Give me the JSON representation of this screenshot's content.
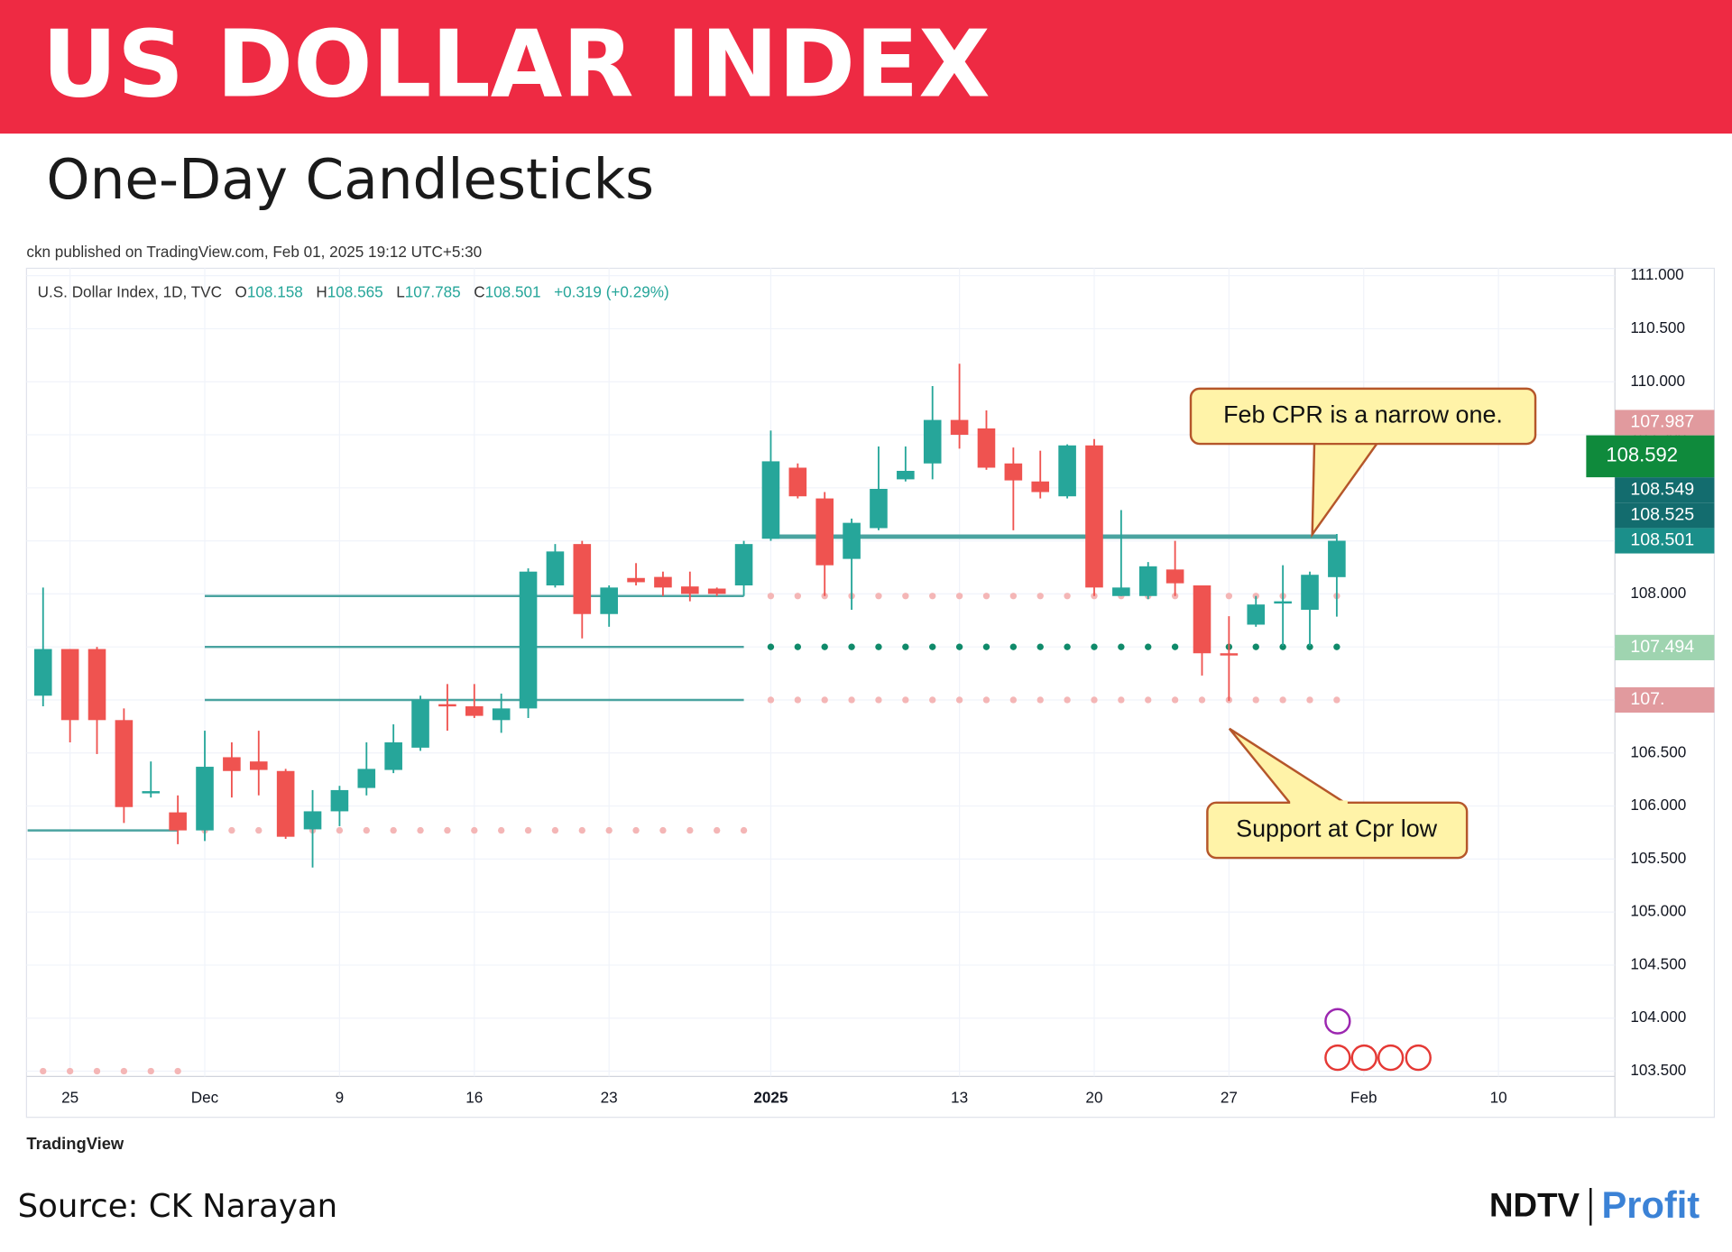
{
  "header": {
    "title": "US DOLLAR INDEX",
    "subtitle": "One-Day Candlesticks",
    "published": "ckn published on TradingView.com, Feb 01, 2025 19:12 UTC+5:30"
  },
  "legend": {
    "symbol": "U.S. Dollar Index, 1D, TVC",
    "o": "O",
    "h": "H",
    "l": "L",
    "c": "C",
    "change": "+0.319 (+0.29%)"
  },
  "chart_data": {
    "type": "candlestick",
    "up_color": "#26a69a",
    "down_color": "#ef5350",
    "categories": [
      null,
      "25",
      null,
      null,
      null,
      null,
      "Dec",
      null,
      null,
      null,
      null,
      "9",
      null,
      null,
      null,
      null,
      "16",
      null,
      null,
      null,
      null,
      "23",
      null,
      null,
      null,
      null,
      null,
      "2025",
      null,
      null,
      null,
      null,
      null,
      null,
      "13",
      null,
      null,
      null,
      null,
      "20",
      null,
      null,
      null,
      null,
      "27",
      null,
      null,
      null,
      null,
      "Feb",
      null,
      null,
      null,
      null,
      "10"
    ],
    "open": [
      107.04,
      107.48,
      107.48,
      106.81,
      106.13,
      105.94,
      105.77,
      106.46,
      106.42,
      106.33,
      105.78,
      105.95,
      106.17,
      106.34,
      106.55,
      106.96,
      106.94,
      106.81,
      106.92,
      108.08,
      108.47,
      107.81,
      108.15,
      108.16,
      108.07,
      108.05,
      108.08,
      108.52,
      109.19,
      108.9,
      108.33,
      108.62,
      109.08,
      109.23,
      109.64,
      109.56,
      109.23,
      109.06,
      108.92,
      109.4,
      107.98,
      107.98,
      108.23,
      108.08,
      107.44,
      107.71,
      107.91,
      107.85,
      108.158,
      null,
      null,
      null,
      null,
      null,
      null
    ],
    "high": [
      108.06,
      107.48,
      107.5,
      106.92,
      106.42,
      106.1,
      106.71,
      106.6,
      106.71,
      106.35,
      106.15,
      106.19,
      106.6,
      106.77,
      107.04,
      107.15,
      107.15,
      107.06,
      108.24,
      108.47,
      108.5,
      108.08,
      108.29,
      108.21,
      108.21,
      108.06,
      108.5,
      109.54,
      109.23,
      108.96,
      108.71,
      109.39,
      109.39,
      109.96,
      110.17,
      109.73,
      109.38,
      109.35,
      109.41,
      109.46,
      108.79,
      108.3,
      108.5,
      108.08,
      107.79,
      107.98,
      108.27,
      108.21,
      108.565,
      null,
      null,
      null,
      null,
      null,
      null
    ],
    "low": [
      106.94,
      106.6,
      106.49,
      105.84,
      106.08,
      105.64,
      105.67,
      106.08,
      106.1,
      105.69,
      105.42,
      105.81,
      106.1,
      106.31,
      106.52,
      106.71,
      106.83,
      106.69,
      106.83,
      108.06,
      107.58,
      107.69,
      108.08,
      107.98,
      107.93,
      107.98,
      107.98,
      108.5,
      108.9,
      107.98,
      107.85,
      108.6,
      109.06,
      109.08,
      109.37,
      109.17,
      108.6,
      108.9,
      108.9,
      107.98,
      107.98,
      107.95,
      107.98,
      107.23,
      106.99,
      107.69,
      107.51,
      107.51,
      107.785,
      null,
      null,
      null,
      null,
      null,
      null
    ],
    "close": [
      107.48,
      106.81,
      106.81,
      105.99,
      106.14,
      105.77,
      106.37,
      106.33,
      106.34,
      105.71,
      105.95,
      106.15,
      106.35,
      106.6,
      107.0,
      106.94,
      106.85,
      106.92,
      108.21,
      108.4,
      107.81,
      108.06,
      108.11,
      108.06,
      108.0,
      108.0,
      108.47,
      109.25,
      108.92,
      108.27,
      108.67,
      108.99,
      109.16,
      109.64,
      109.5,
      109.19,
      109.07,
      108.96,
      109.4,
      108.06,
      108.06,
      108.26,
      108.1,
      107.44,
      107.42,
      107.9,
      107.93,
      108.18,
      108.501,
      null,
      null,
      null,
      null,
      null,
      null
    ],
    "levels": [
      {
        "value": 105.77,
        "span": [
          0,
          5
        ],
        "style": "line",
        "color": "#4aa3a0"
      },
      {
        "value": 103.5,
        "span": [
          0,
          5
        ],
        "style": "dots",
        "color": "#f4b6b6"
      },
      {
        "value": 105.77,
        "span": [
          6,
          26
        ],
        "style": "dots",
        "color": "#f4b6b6"
      },
      {
        "value": 107.98,
        "span": [
          6,
          26
        ],
        "style": "line",
        "color": "#4aa3a0"
      },
      {
        "value": 107.5,
        "span": [
          6,
          26
        ],
        "style": "line",
        "color": "#4aa3a0"
      },
      {
        "value": 107.0,
        "span": [
          6,
          26
        ],
        "style": "line",
        "color": "#4aa3a0"
      },
      {
        "value": 108.54,
        "span": [
          27,
          48
        ],
        "style": "thick",
        "color": "#4aa3a0"
      },
      {
        "value": 107.98,
        "span": [
          27,
          48
        ],
        "style": "dots",
        "color": "#f4b6b6"
      },
      {
        "value": 107.5,
        "span": [
          27,
          48
        ],
        "style": "dots",
        "color": "#0f8a6a"
      },
      {
        "value": 107.0,
        "span": [
          27,
          48
        ],
        "style": "dots",
        "color": "#f4b6b6"
      }
    ],
    "ylim": [
      103.45,
      111.07
    ],
    "yticks": [
      {
        "value": 103.5,
        "label": "103.500"
      },
      {
        "value": 104,
        "label": "104.000"
      },
      {
        "value": 104.5,
        "label": "104.500"
      },
      {
        "value": 105,
        "label": "105.000"
      },
      {
        "value": 105.5,
        "label": "105.500"
      },
      {
        "value": 106,
        "label": "106.000"
      },
      {
        "value": 106.5,
        "label": "106.500"
      },
      {
        "value": 107,
        "label": "107.000"
      },
      {
        "value": 107.5,
        "label": "107.500"
      },
      {
        "value": 108,
        "label": "108.000"
      },
      {
        "value": 108.5,
        "label": "108.500"
      },
      {
        "value": 109,
        "label": "109.000"
      },
      {
        "value": 109.5,
        "label": "109.500"
      },
      {
        "value": 110,
        "label": "110.000"
      },
      {
        "value": 110.5,
        "label": "110.500"
      },
      {
        "value": 111,
        "label": "111.000"
      }
    ],
    "price_labels": [
      {
        "value": 108.501,
        "label": "108.501",
        "color": "#1b8f8a"
      },
      {
        "value": 108.525,
        "label": "108.525",
        "color": "#136c6e"
      },
      {
        "value": 108.549,
        "label": "108.549",
        "color": "#136c6e"
      },
      {
        "value": 108.592,
        "label": "108.592",
        "color": "#0f8a3c"
      },
      {
        "value": 107.987,
        "label": "107.987",
        "color": "#e19a9e"
      },
      {
        "value": 107.494,
        "label": "107.494",
        "color": "#9fd4b0"
      },
      {
        "value": 107,
        "label": "107.",
        "color": "#e19a9e"
      }
    ],
    "annotations": [
      "Feb CPR is a narrow one.",
      "Support at Cpr low"
    ],
    "grid": true
  },
  "footer": {
    "logo": "TradingView",
    "source": "Source: CK Narayan",
    "brand": "NDTV",
    "brand2": "Profit"
  }
}
